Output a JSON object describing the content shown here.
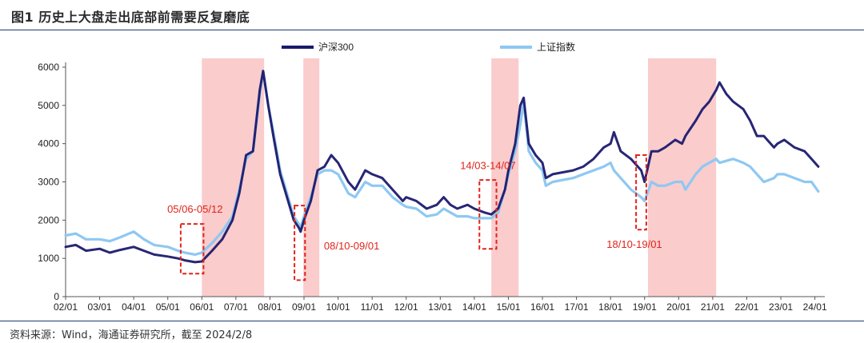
{
  "figure": {
    "title": "图1   历史上大盘走出底部前需要反复磨底",
    "source": "资料来源：Wind，海通证券研究所，截至 2024/2/8"
  },
  "colors": {
    "hs300": "#1b1a6e",
    "sse": "#8ec8f2",
    "shade": "#f9c3c3",
    "annotation": "#e0241b"
  },
  "chart_data": {
    "type": "line",
    "title": "",
    "xlabel": "",
    "ylabel": "",
    "ylim": [
      0,
      6000
    ],
    "yticks": [
      0,
      1000,
      2000,
      3000,
      4000,
      5000,
      6000
    ],
    "xlim": [
      2002.0,
      2024.15
    ],
    "x_ticks": [
      "02/01",
      "03/01",
      "04/01",
      "05/01",
      "06/01",
      "07/01",
      "08/01",
      "09/01",
      "10/01",
      "11/01",
      "12/01",
      "13/01",
      "14/01",
      "15/01",
      "16/01",
      "17/01",
      "18/01",
      "19/01",
      "20/01",
      "21/01",
      "22/01",
      "23/01",
      "24/01"
    ],
    "legend_position": "top",
    "grid": false,
    "series": [
      {
        "name": "沪深300",
        "color": "#1b1a6e",
        "x": [
          2002.0,
          2002.3,
          2002.6,
          2003.0,
          2003.3,
          2003.6,
          2004.0,
          2004.3,
          2004.6,
          2005.0,
          2005.3,
          2005.5,
          2005.8,
          2006.0,
          2006.3,
          2006.6,
          2006.9,
          2007.1,
          2007.3,
          2007.5,
          2007.7,
          2007.8,
          2007.95,
          2008.1,
          2008.3,
          2008.5,
          2008.7,
          2008.85,
          2008.9,
          2009.0,
          2009.2,
          2009.4,
          2009.6,
          2009.8,
          2010.0,
          2010.3,
          2010.5,
          2010.8,
          2011.0,
          2011.3,
          2011.6,
          2011.9,
          2012.0,
          2012.3,
          2012.6,
          2012.9,
          2013.1,
          2013.3,
          2013.5,
          2013.8,
          2014.0,
          2014.3,
          2014.5,
          2014.7,
          2014.9,
          2015.0,
          2015.2,
          2015.35,
          2015.45,
          2015.6,
          2015.8,
          2016.0,
          2016.1,
          2016.3,
          2016.6,
          2016.9,
          2017.2,
          2017.5,
          2017.8,
          2018.0,
          2018.1,
          2018.3,
          2018.6,
          2018.9,
          2019.0,
          2019.2,
          2019.4,
          2019.6,
          2019.9,
          2020.1,
          2020.2,
          2020.5,
          2020.7,
          2020.9,
          2021.1,
          2021.2,
          2021.4,
          2021.6,
          2021.9,
          2022.1,
          2022.3,
          2022.5,
          2022.8,
          2022.9,
          2023.1,
          2023.4,
          2023.7,
          2023.9,
          2024.1
        ],
        "y": [
          1300,
          1350,
          1200,
          1250,
          1150,
          1220,
          1300,
          1200,
          1100,
          1050,
          1000,
          950,
          900,
          920,
          1200,
          1500,
          2000,
          2700,
          3700,
          3800,
          5400,
          5900,
          5000,
          4200,
          3200,
          2600,
          2000,
          1800,
          1700,
          2000,
          2500,
          3300,
          3400,
          3700,
          3500,
          3000,
          2800,
          3300,
          3200,
          3100,
          2800,
          2500,
          2600,
          2500,
          2300,
          2400,
          2600,
          2400,
          2300,
          2400,
          2300,
          2200,
          2150,
          2300,
          2800,
          3300,
          4000,
          5000,
          5200,
          4000,
          3700,
          3500,
          3100,
          3200,
          3250,
          3300,
          3400,
          3600,
          3900,
          4000,
          4300,
          3800,
          3600,
          3300,
          3000,
          3800,
          3800,
          3900,
          4100,
          4000,
          4200,
          4600,
          4900,
          5100,
          5400,
          5600,
          5300,
          5100,
          4900,
          4600,
          4200,
          4200,
          3900,
          4000,
          4100,
          3900,
          3800,
          3600,
          3400
        ]
      },
      {
        "name": "上证指数",
        "color": "#8ec8f2",
        "x": [
          2002.0,
          2002.3,
          2002.6,
          2003.0,
          2003.3,
          2003.6,
          2004.0,
          2004.3,
          2004.6,
          2005.0,
          2005.3,
          2005.5,
          2005.8,
          2006.0,
          2006.3,
          2006.6,
          2006.9,
          2007.1,
          2007.3,
          2007.5,
          2007.7,
          2007.8,
          2007.95,
          2008.1,
          2008.3,
          2008.5,
          2008.7,
          2008.85,
          2008.9,
          2009.0,
          2009.2,
          2009.4,
          2009.6,
          2009.8,
          2010.0,
          2010.3,
          2010.5,
          2010.8,
          2011.0,
          2011.3,
          2011.6,
          2011.9,
          2012.0,
          2012.3,
          2012.6,
          2012.9,
          2013.1,
          2013.3,
          2013.5,
          2013.8,
          2014.0,
          2014.3,
          2014.5,
          2014.7,
          2014.9,
          2015.0,
          2015.2,
          2015.35,
          2015.45,
          2015.6,
          2015.8,
          2016.0,
          2016.1,
          2016.3,
          2016.6,
          2016.9,
          2017.2,
          2017.5,
          2017.8,
          2018.0,
          2018.1,
          2018.3,
          2018.6,
          2018.9,
          2019.0,
          2019.2,
          2019.4,
          2019.6,
          2019.9,
          2020.1,
          2020.2,
          2020.5,
          2020.7,
          2020.9,
          2021.1,
          2021.2,
          2021.4,
          2021.6,
          2021.9,
          2022.1,
          2022.3,
          2022.5,
          2022.8,
          2022.9,
          2023.1,
          2023.4,
          2023.7,
          2023.9,
          2024.1
        ],
        "y": [
          1600,
          1650,
          1500,
          1500,
          1450,
          1550,
          1700,
          1500,
          1350,
          1300,
          1200,
          1150,
          1100,
          1150,
          1400,
          1700,
          2100,
          2800,
          3600,
          3800,
          5300,
          5900,
          5000,
          4300,
          3300,
          2700,
          2100,
          1900,
          1800,
          2100,
          2600,
          3200,
          3300,
          3300,
          3200,
          2700,
          2600,
          3000,
          2900,
          2900,
          2600,
          2400,
          2350,
          2300,
          2100,
          2150,
          2300,
          2200,
          2100,
          2100,
          2050,
          2050,
          2050,
          2200,
          2800,
          3200,
          3800,
          4500,
          5100,
          3800,
          3500,
          3300,
          2900,
          3000,
          3050,
          3100,
          3200,
          3300,
          3400,
          3500,
          3300,
          3100,
          2800,
          2600,
          2500,
          3000,
          2900,
          2900,
          3000,
          3000,
          2800,
          3200,
          3400,
          3500,
          3600,
          3500,
          3550,
          3600,
          3500,
          3400,
          3200,
          3000,
          3100,
          3200,
          3200,
          3100,
          3000,
          3000,
          2750
        ]
      }
    ],
    "shaded_regions": [
      {
        "from": 2006.0,
        "to": 2007.83
      },
      {
        "from": 2008.98,
        "to": 2009.45
      },
      {
        "from": 2014.5,
        "to": 2015.3
      },
      {
        "from": 2019.1,
        "to": 2021.1
      }
    ],
    "annotations": [
      {
        "label": "05/06-05/12",
        "x0": 2005.38,
        "x1": 2006.05,
        "y0": 600,
        "y1": 1900,
        "label_x": 2005.8,
        "label_y": 2200
      },
      {
        "label": "08/10-09/01",
        "x0": 2008.72,
        "x1": 2009.03,
        "y0": 430,
        "y1": 2380,
        "label_x": 2010.4,
        "label_y": 1230
      },
      {
        "label": "14/03-14/07",
        "x0": 2014.15,
        "x1": 2014.65,
        "y0": 1250,
        "y1": 3050,
        "label_x": 2014.4,
        "label_y": 3330
      },
      {
        "label": "18/10-19/01",
        "x0": 2018.75,
        "x1": 2019.05,
        "y0": 1750,
        "y1": 3700,
        "label_x": 2018.7,
        "label_y": 1280
      }
    ]
  }
}
